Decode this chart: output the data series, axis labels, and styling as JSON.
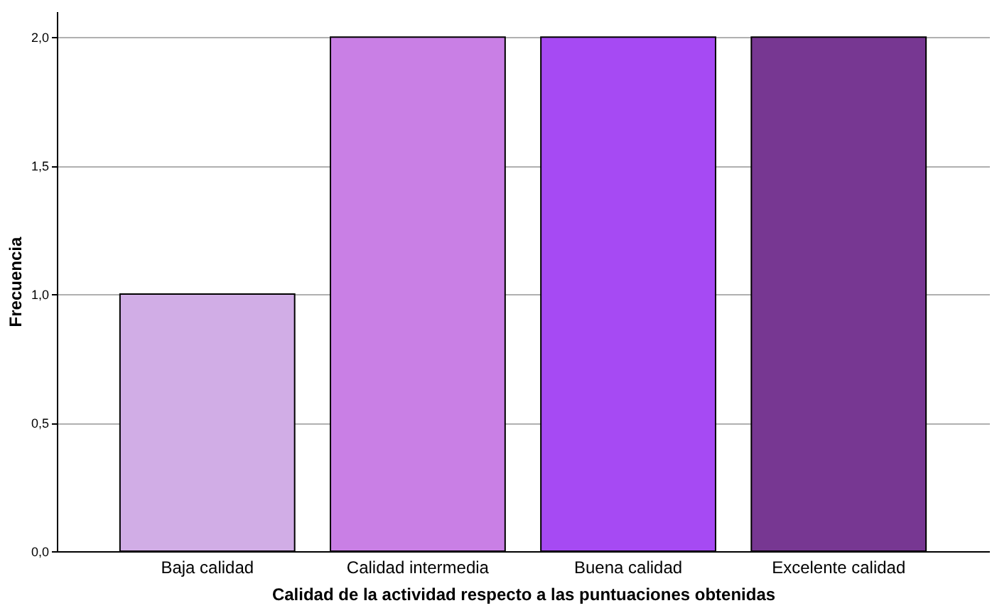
{
  "chart_data": {
    "type": "bar",
    "xlabel": "Calidad de la actividad respecto a las puntuaciones obtenidas",
    "ylabel": "Frecuencia",
    "categories": [
      "Baja calidad",
      "Calidad intermedia",
      "Buena calidad",
      "Excelente calidad"
    ],
    "values": [
      1,
      2,
      2,
      2
    ],
    "colors": [
      "#d1ade6",
      "#c97fe5",
      "#a64af3",
      "#773792"
    ],
    "ylim": [
      0,
      2.1
    ],
    "yticks": [
      {
        "value": 0,
        "label": "0,0"
      },
      {
        "value": 0.5,
        "label": "0,5"
      },
      {
        "value": 1,
        "label": "1,0"
      },
      {
        "value": 1.5,
        "label": "1,5"
      },
      {
        "value": 2,
        "label": "2,0"
      }
    ],
    "grid": "y"
  }
}
